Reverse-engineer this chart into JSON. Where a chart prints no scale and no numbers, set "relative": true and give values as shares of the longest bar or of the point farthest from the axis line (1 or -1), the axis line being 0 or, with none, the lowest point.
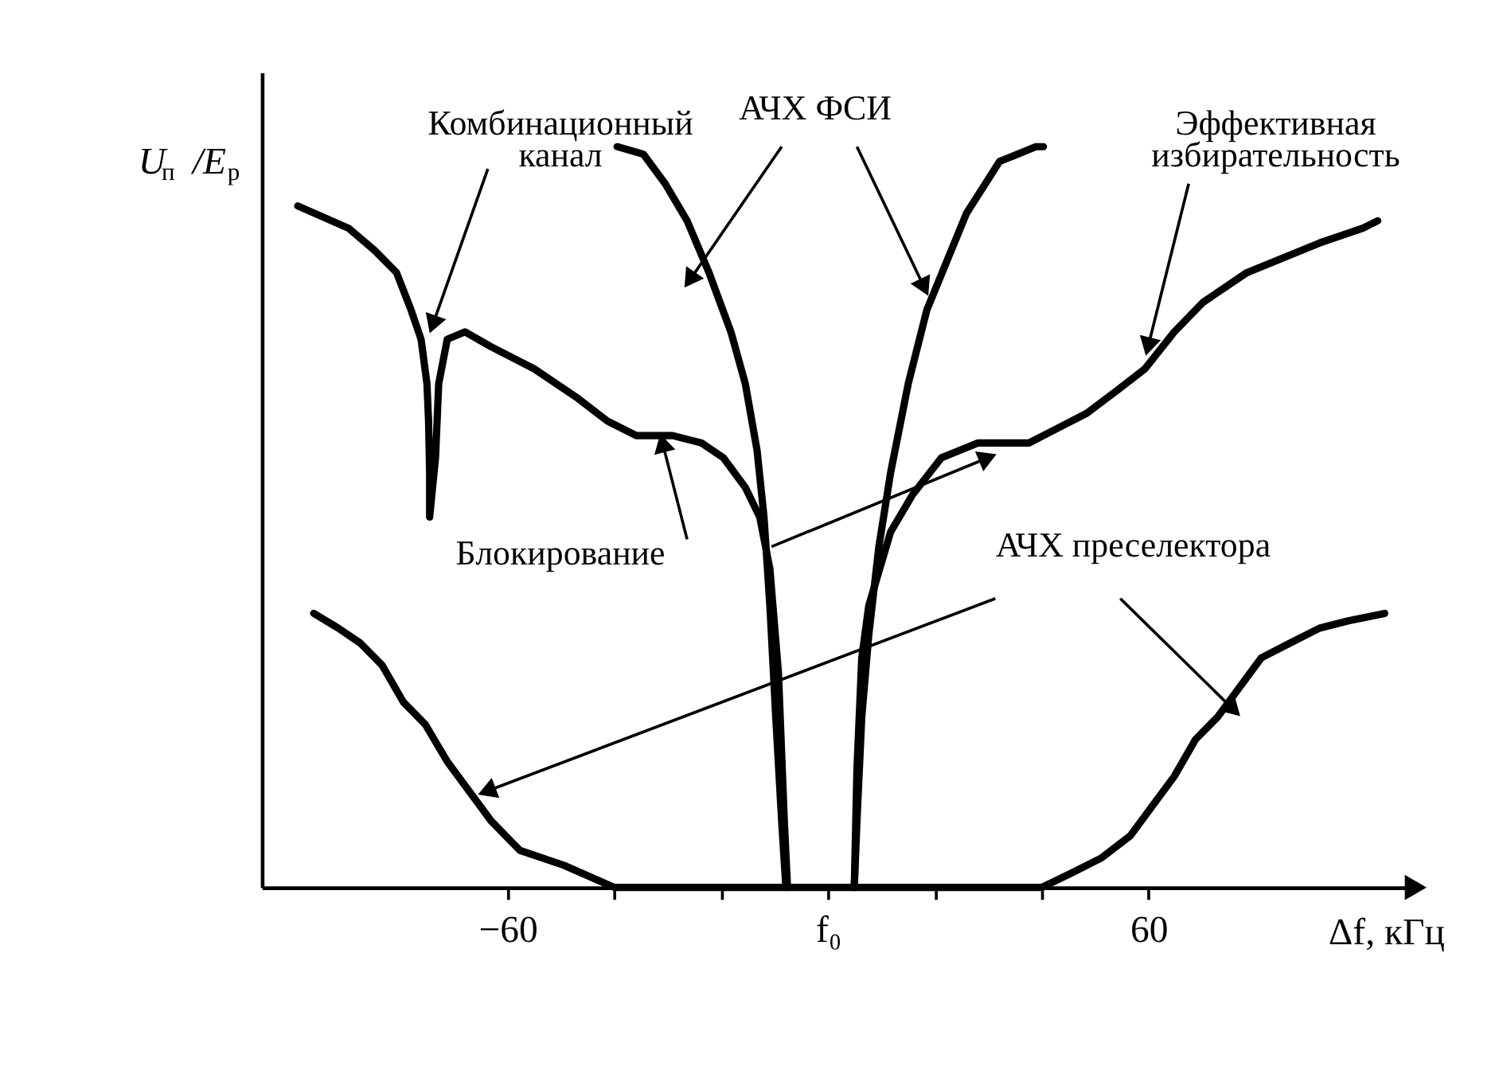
{
  "chart_data": {
    "type": "line",
    "relative": true,
    "xlabel": "Δf, кГц",
    "ylabel": "U$_{п}$ /E$_{р}$",
    "xlim": [
      -106,
      110
    ],
    "xticks": [
      {
        "value": -60,
        "label": "−60"
      },
      {
        "value": -40,
        "label": null
      },
      {
        "value": -20,
        "label": null
      },
      {
        "value": 0,
        "label": "f₀"
      },
      {
        "value": 20,
        "label": null
      },
      {
        "value": 40,
        "label": null
      },
      {
        "value": 60,
        "label": "60"
      }
    ],
    "annotations": [
      "Комбинационный канал",
      "АЧХ ФСИ",
      "Эффективная избирательность",
      "Блокирование",
      "АЧХ преселектора"
    ],
    "series": [
      {
        "color": "#000000",
        "x": [
          -99.3,
          -89.8,
          -84.9,
          -80.8,
          -78.1,
          -76.2,
          -75.1,
          -74.8,
          -74.6,
          -74.6,
          -73.5,
          -72.9,
          -71.3,
          -68.0,
          -63.1,
          -55.0,
          -46.8,
          -41.4,
          -35.9,
          -29.1,
          -23.7,
          -19.6,
          -15.5,
          -12.8,
          -10.9,
          -9.3,
          -8.2,
          -7.6
        ],
        "values": [
          0.92,
          0.89,
          0.86,
          0.83,
          0.78,
          0.74,
          0.68,
          0.63,
          0.56,
          0.5,
          0.58,
          0.68,
          0.74,
          0.75,
          0.73,
          0.7,
          0.66,
          0.63,
          0.61,
          0.61,
          0.6,
          0.58,
          0.54,
          0.5,
          0.43,
          0.29,
          0.09,
          0
        ]
      },
      {
        "color": "#000000",
        "x": [
          4.9,
          5.4,
          6.3,
          7.6,
          11.7,
          15.8,
          21.2,
          28.0,
          37.6,
          43.0,
          48.4,
          53.9,
          59.3,
          64.8,
          70.2,
          78.4,
          92.0,
          100.1,
          102.9
        ],
        "values": [
          0,
          0.16,
          0.31,
          0.38,
          0.48,
          0.53,
          0.58,
          0.6,
          0.6,
          0.62,
          0.64,
          0.67,
          0.7,
          0.75,
          0.79,
          0.83,
          0.87,
          0.89,
          0.9
        ]
      },
      {
        "color": "#000000",
        "x": [
          -39.5,
          -34.6,
          -30.5,
          -26.4,
          -22.3,
          -18.2,
          -15.5,
          -13.3,
          -12.0,
          -10.9,
          -9.8,
          -8.7,
          -7.9
        ],
        "values": [
          1.0,
          0.99,
          0.95,
          0.9,
          0.83,
          0.75,
          0.68,
          0.59,
          0.5,
          0.38,
          0.23,
          0.09,
          0
        ]
      },
      {
        "color": "#000000",
        "x": [
          4.9,
          5.4,
          6.3,
          7.6,
          9.5,
          11.7,
          15.0,
          18.5,
          25.9,
          32.1,
          38.9,
          40.3
        ],
        "values": [
          0,
          0.09,
          0.23,
          0.34,
          0.46,
          0.56,
          0.68,
          0.78,
          0.91,
          0.98,
          1.0,
          1.0
        ]
      },
      {
        "color": "#000000",
        "x": [
          -96.3,
          -91.7,
          -87.6,
          -83.5,
          -79.5,
          -75.4,
          -71.3,
          -67.2,
          -63.1,
          -57.7,
          -49.5,
          -40,
          40,
          45.7,
          51.2,
          56.6,
          60.7,
          64.8,
          68.8,
          72.9,
          77.0,
          81.1,
          86.5,
          92.0,
          97.4,
          104.2
        ],
        "values": [
          0.37,
          0.35,
          0.33,
          0.3,
          0.25,
          0.22,
          0.17,
          0.13,
          0.09,
          0.05,
          0.03,
          0,
          0,
          0.02,
          0.04,
          0.07,
          0.11,
          0.15,
          0.2,
          0.23,
          0.27,
          0.31,
          0.33,
          0.35,
          0.36,
          0.37
        ]
      }
    ]
  }
}
